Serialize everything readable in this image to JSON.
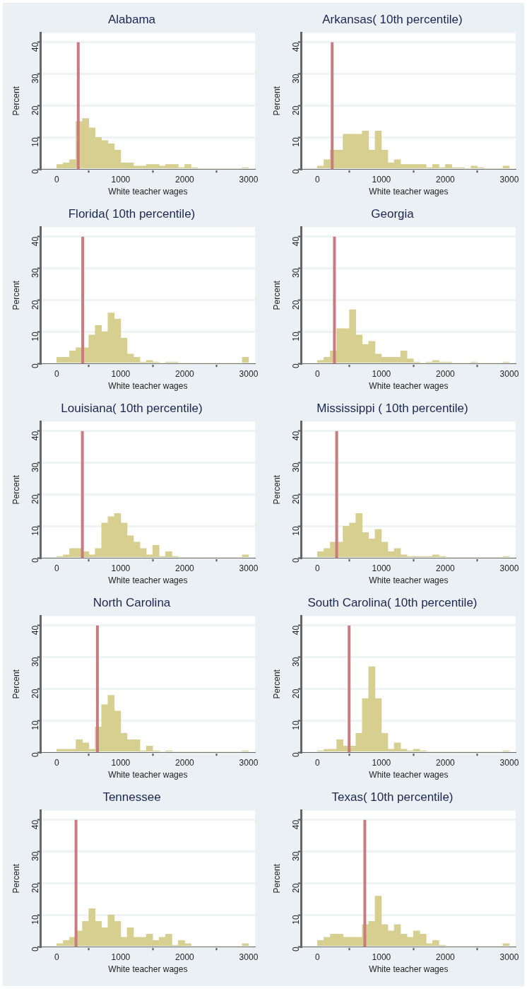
{
  "chart_data": [
    {
      "type": "histogram",
      "title": "Alabama",
      "xlabel": "White teacher wages",
      "ylabel": "Percent",
      "bins": [
        0,
        100,
        200,
        300,
        400,
        500,
        600,
        700,
        800,
        900,
        1000,
        1100,
        1200,
        1300,
        1400,
        1500,
        1600,
        1700,
        1800,
        1900,
        2000,
        2100,
        2200,
        2300,
        2400,
        2500,
        2600,
        2700,
        2800,
        2900,
        3000
      ],
      "values": [
        1.5,
        2,
        3,
        15,
        16,
        13,
        10,
        9,
        8,
        6,
        2,
        2,
        1,
        1,
        1.5,
        1.5,
        1,
        1.5,
        1.5,
        0.5,
        1.5,
        0.5,
        0,
        0,
        0,
        0,
        0,
        0,
        0,
        0.5
      ],
      "color": "#d6cf8f",
      "xlim": [
        -250,
        3100
      ],
      "xticks": [
        0,
        1000,
        2000,
        3000
      ],
      "ylim": [
        0,
        43
      ],
      "yticks": [
        0,
        10,
        20,
        30,
        40
      ],
      "grid": "y",
      "ref_lines": [
        {
          "axis": "x",
          "value": 335,
          "color": "#c87c80"
        }
      ]
    },
    {
      "type": "histogram",
      "title": "Arkansas( 10th percentile)",
      "xlabel": "White teacher wages",
      "ylabel": "Percent",
      "bins": [
        0,
        100,
        200,
        300,
        400,
        500,
        600,
        700,
        800,
        900,
        1000,
        1100,
        1200,
        1300,
        1400,
        1500,
        1600,
        1700,
        1800,
        1900,
        2000,
        2100,
        2200,
        2300,
        2400,
        2500,
        2600,
        2700,
        2800,
        2900,
        3000
      ],
      "values": [
        1,
        3,
        6,
        6,
        11,
        11,
        11,
        12,
        6,
        12,
        6,
        2,
        3,
        1.5,
        1.5,
        1.5,
        1.5,
        0.5,
        1.5,
        0.5,
        1.5,
        0.5,
        0.5,
        0,
        1,
        0.5,
        0,
        0,
        0,
        1
      ],
      "color": "#d6cf8f",
      "xlim": [
        -250,
        3100
      ],
      "xticks": [
        0,
        1000,
        2000,
        3000
      ],
      "ylim": [
        0,
        43
      ],
      "yticks": [
        0,
        10,
        20,
        30,
        40
      ],
      "grid": "y",
      "ref_lines": [
        {
          "axis": "x",
          "value": 230,
          "color": "#c87c80"
        }
      ]
    },
    {
      "type": "histogram",
      "title": "Florida( 10th percentile)",
      "xlabel": "White teacher wages",
      "ylabel": "Percent",
      "bins": [
        0,
        100,
        200,
        300,
        400,
        500,
        600,
        700,
        800,
        900,
        1000,
        1100,
        1200,
        1300,
        1400,
        1500,
        1600,
        1700,
        1800,
        1900,
        2000,
        2100,
        2200,
        2300,
        2400,
        2500,
        2600,
        2700,
        2800,
        2900,
        3000
      ],
      "values": [
        2,
        2,
        4,
        5,
        5,
        9,
        12,
        10,
        16,
        14,
        8,
        3,
        2,
        0.5,
        1,
        0.5,
        0,
        0.5,
        0.5,
        0,
        0,
        0,
        0,
        0,
        0,
        0,
        0,
        0,
        0,
        2
      ],
      "color": "#d6cf8f",
      "xlim": [
        -250,
        3100
      ],
      "xticks": [
        0,
        1000,
        2000,
        3000
      ],
      "ylim": [
        0,
        43
      ],
      "yticks": [
        0,
        10,
        20,
        30,
        40
      ],
      "grid": "y",
      "ref_lines": [
        {
          "axis": "x",
          "value": 405,
          "color": "#c87c80"
        }
      ]
    },
    {
      "type": "histogram",
      "title": "Georgia",
      "xlabel": "White teacher wages",
      "ylabel": "Percent",
      "bins": [
        0,
        100,
        200,
        300,
        400,
        500,
        600,
        700,
        800,
        900,
        1000,
        1100,
        1200,
        1300,
        1400,
        1500,
        1600,
        1700,
        1800,
        1900,
        2000,
        2100,
        2200,
        2300,
        2400,
        2500,
        2600,
        2700,
        2800,
        2900,
        3000
      ],
      "values": [
        1,
        2,
        4,
        11,
        11,
        17,
        9,
        6,
        7,
        3,
        2,
        2,
        2,
        4,
        1.5,
        0.5,
        0,
        0.5,
        1,
        0.5,
        0.5,
        0,
        0,
        0,
        0.5,
        0,
        0,
        0,
        0,
        0.5
      ],
      "color": "#d6cf8f",
      "xlim": [
        -250,
        3100
      ],
      "xticks": [
        0,
        1000,
        2000,
        3000
      ],
      "ylim": [
        0,
        43
      ],
      "yticks": [
        0,
        10,
        20,
        30,
        40
      ],
      "grid": "y",
      "ref_lines": [
        {
          "axis": "x",
          "value": 265,
          "color": "#c87c80"
        }
      ]
    },
    {
      "type": "histogram",
      "title": "Louisiana( 10th percentile)",
      "xlabel": "White teacher wages",
      "ylabel": "Percent",
      "bins": [
        0,
        100,
        200,
        300,
        400,
        500,
        600,
        700,
        800,
        900,
        1000,
        1100,
        1200,
        1300,
        1400,
        1500,
        1600,
        1700,
        1800,
        1900,
        2000,
        2100,
        2200,
        2300,
        2400,
        2500,
        2600,
        2700,
        2800,
        2900,
        3000
      ],
      "values": [
        0.5,
        1,
        3,
        3,
        2,
        1,
        3,
        11,
        13,
        14,
        11,
        7,
        5,
        3,
        1,
        4,
        0.5,
        2,
        0.5,
        0,
        0,
        0,
        0,
        0,
        0,
        0,
        0,
        0,
        0,
        1
      ],
      "color": "#d6cf8f",
      "xlim": [
        -250,
        3100
      ],
      "xticks": [
        0,
        1000,
        2000,
        3000
      ],
      "ylim": [
        0,
        43
      ],
      "yticks": [
        0,
        10,
        20,
        30,
        40
      ],
      "grid": "y",
      "ref_lines": [
        {
          "axis": "x",
          "value": 400,
          "color": "#c87c80"
        }
      ]
    },
    {
      "type": "histogram",
      "title": "Mississippi ( 10th percentile)",
      "xlabel": "White teacher wages",
      "ylabel": "Percent",
      "bins": [
        0,
        100,
        200,
        300,
        400,
        500,
        600,
        700,
        800,
        900,
        1000,
        1100,
        1200,
        1300,
        1400,
        1500,
        1600,
        1700,
        1800,
        1900,
        2000,
        2100,
        2200,
        2300,
        2400,
        2500,
        2600,
        2700,
        2800,
        2900,
        3000
      ],
      "values": [
        2,
        3,
        5,
        5,
        10,
        11,
        14,
        8,
        6,
        9,
        5,
        2,
        3,
        1,
        0.5,
        0.5,
        0.5,
        0.5,
        1,
        0.5,
        0,
        0,
        0,
        0,
        0,
        0,
        0,
        0,
        0,
        0.5
      ],
      "color": "#d6cf8f",
      "xlim": [
        -250,
        3100
      ],
      "xticks": [
        0,
        1000,
        2000,
        3000
      ],
      "ylim": [
        0,
        43
      ],
      "yticks": [
        0,
        10,
        20,
        30,
        40
      ],
      "grid": "y",
      "ref_lines": [
        {
          "axis": "x",
          "value": 300,
          "color": "#c87c80"
        }
      ]
    },
    {
      "type": "histogram",
      "title": "North Carolina",
      "xlabel": "White teacher wages",
      "ylabel": "Percent",
      "bins": [
        0,
        100,
        200,
        300,
        400,
        500,
        600,
        700,
        800,
        900,
        1000,
        1100,
        1200,
        1300,
        1400,
        1500,
        1600,
        1700,
        1800,
        1900,
        2000,
        2100,
        2200,
        2300,
        2400,
        2500,
        2600,
        2700,
        2800,
        2900,
        3000
      ],
      "values": [
        1,
        1,
        1,
        4,
        3,
        1,
        8,
        15,
        18,
        13,
        6,
        4,
        4,
        0.5,
        2,
        0.5,
        0,
        0.5,
        0,
        0,
        0,
        0,
        0,
        0,
        0,
        0,
        0,
        0,
        0,
        0.5
      ],
      "color": "#d6cf8f",
      "xlim": [
        -250,
        3100
      ],
      "xticks": [
        0,
        1000,
        2000,
        3000
      ],
      "ylim": [
        0,
        43
      ],
      "yticks": [
        0,
        10,
        20,
        30,
        40
      ],
      "grid": "y",
      "ref_lines": [
        {
          "axis": "x",
          "value": 635,
          "color": "#c87c80"
        }
      ]
    },
    {
      "type": "histogram",
      "title": "South Carolina( 10th percentile)",
      "xlabel": "White teacher wages",
      "ylabel": "Percent",
      "bins": [
        0,
        100,
        200,
        300,
        400,
        500,
        600,
        700,
        800,
        900,
        1000,
        1100,
        1200,
        1300,
        1400,
        1500,
        1600,
        1700,
        1800,
        1900,
        2000,
        2100,
        2200,
        2300,
        2400,
        2500,
        2600,
        2700,
        2800,
        2900,
        3000
      ],
      "values": [
        0.5,
        1,
        1,
        4,
        2,
        2,
        6,
        17,
        27,
        17,
        6,
        1,
        3,
        1,
        0.5,
        1,
        0.5,
        0,
        0,
        0,
        0,
        0,
        0,
        0,
        0,
        0,
        0,
        0,
        0,
        0.5
      ],
      "color": "#d6cf8f",
      "xlim": [
        -250,
        3100
      ],
      "xticks": [
        0,
        1000,
        2000,
        3000
      ],
      "ylim": [
        0,
        43
      ],
      "yticks": [
        0,
        10,
        20,
        30,
        40
      ],
      "grid": "y",
      "ref_lines": [
        {
          "axis": "x",
          "value": 495,
          "color": "#c87c80"
        }
      ]
    },
    {
      "type": "histogram",
      "title": "Tennessee",
      "xlabel": "White teacher wages",
      "ylabel": "Percent",
      "bins": [
        0,
        100,
        200,
        300,
        400,
        500,
        600,
        700,
        800,
        900,
        1000,
        1100,
        1200,
        1300,
        1400,
        1500,
        1600,
        1700,
        1800,
        1900,
        2000,
        2100,
        2200,
        2300,
        2400,
        2500,
        2600,
        2700,
        2800,
        2900,
        3000
      ],
      "values": [
        1,
        2,
        3,
        5,
        8,
        12,
        8,
        6,
        10,
        8,
        3,
        6,
        3,
        3,
        4,
        2,
        3,
        4,
        0.5,
        2,
        1,
        0,
        0,
        0,
        0,
        0,
        0,
        0,
        0,
        1
      ],
      "color": "#d6cf8f",
      "xlim": [
        -250,
        3100
      ],
      "xticks": [
        0,
        1000,
        2000,
        3000
      ],
      "ylim": [
        0,
        43
      ],
      "yticks": [
        0,
        10,
        20,
        30,
        40
      ],
      "grid": "y",
      "ref_lines": [
        {
          "axis": "x",
          "value": 300,
          "color": "#c87c80"
        }
      ]
    },
    {
      "type": "histogram",
      "title": "Texas( 10th percentile)",
      "xlabel": "White teacher wages",
      "ylabel": "Percent",
      "bins": [
        0,
        100,
        200,
        300,
        400,
        500,
        600,
        700,
        800,
        900,
        1000,
        1100,
        1200,
        1300,
        1400,
        1500,
        1600,
        1700,
        1800,
        1900,
        2000,
        2100,
        2200,
        2300,
        2400,
        2500,
        2600,
        2700,
        2800,
        2900,
        3000
      ],
      "values": [
        2,
        3,
        4,
        4,
        3,
        3,
        3,
        7,
        8,
        16,
        7,
        5,
        7,
        4,
        3,
        5,
        4,
        1,
        2,
        0.5,
        0,
        0,
        0,
        0,
        0,
        0,
        0,
        0,
        0,
        1
      ],
      "color": "#d6cf8f",
      "xlim": [
        -250,
        3100
      ],
      "xticks": [
        0,
        1000,
        2000,
        3000
      ],
      "ylim": [
        0,
        43
      ],
      "yticks": [
        0,
        10,
        20,
        30,
        40
      ],
      "grid": "y",
      "ref_lines": [
        {
          "axis": "x",
          "value": 740,
          "color": "#c87c80"
        }
      ]
    }
  ]
}
